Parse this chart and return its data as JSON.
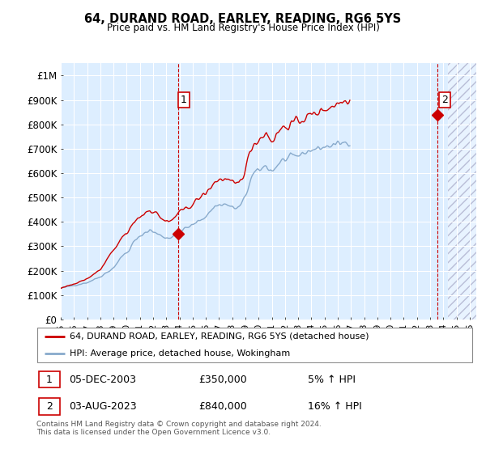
{
  "title": "64, DURAND ROAD, EARLEY, READING, RG6 5YS",
  "subtitle": "Price paid vs. HM Land Registry's House Price Index (HPI)",
  "ylabel_ticks": [
    "£0",
    "£100K",
    "£200K",
    "£300K",
    "£400K",
    "£500K",
    "£600K",
    "£700K",
    "£800K",
    "£900K",
    "£1M"
  ],
  "ytick_values": [
    0,
    100000,
    200000,
    300000,
    400000,
    500000,
    600000,
    700000,
    800000,
    900000,
    1000000
  ],
  "ylim": [
    0,
    1050000
  ],
  "xlim_start": 1995.0,
  "xlim_end": 2026.5,
  "xtick_years": [
    1995,
    1996,
    1997,
    1998,
    1999,
    2000,
    2001,
    2002,
    2003,
    2004,
    2005,
    2006,
    2007,
    2008,
    2009,
    2010,
    2011,
    2012,
    2013,
    2014,
    2015,
    2016,
    2017,
    2018,
    2019,
    2020,
    2021,
    2022,
    2023,
    2024,
    2025,
    2026
  ],
  "sale1_x": 2003.92,
  "sale1_y": 350000,
  "sale1_label": "1",
  "sale1_date": "05-DEC-2003",
  "sale1_price": "£350,000",
  "sale1_hpi": "5% ↑ HPI",
  "sale2_x": 2023.58,
  "sale2_y": 840000,
  "sale2_label": "2",
  "sale2_date": "03-AUG-2023",
  "sale2_price": "£840,000",
  "sale2_hpi": "16% ↑ HPI",
  "line_color_red": "#cc0000",
  "line_color_blue": "#88aacc",
  "bg_color": "#ddeeff",
  "legend_label_red": "64, DURAND ROAD, EARLEY, READING, RG6 5YS (detached house)",
  "legend_label_blue": "HPI: Average price, detached house, Wokingham",
  "footnote": "Contains HM Land Registry data © Crown copyright and database right 2024.\nThis data is licensed under the Open Government Licence v3.0.",
  "hpi_monthly": [
    128000,
    129000,
    130000,
    131500,
    132000,
    133000,
    134000,
    135000,
    136000,
    137000,
    138000,
    139000,
    139500,
    140000,
    141000,
    142000,
    143000,
    144000,
    145000,
    146000,
    147000,
    148000,
    149000,
    150000,
    151000,
    153000,
    155000,
    157000,
    159000,
    161000,
    163000,
    165000,
    167000,
    169000,
    171000,
    173000,
    175000,
    178000,
    181000,
    184000,
    187000,
    190000,
    193000,
    196000,
    199000,
    202000,
    205000,
    208000,
    212000,
    218000,
    224000,
    230000,
    236000,
    242000,
    248000,
    254000,
    260000,
    265000,
    268000,
    270000,
    273000,
    278000,
    283000,
    290000,
    298000,
    306000,
    315000,
    320000,
    325000,
    328000,
    332000,
    335000,
    338000,
    342000,
    346000,
    350000,
    354000,
    358000,
    360000,
    362000,
    364000,
    366000,
    364000,
    362000,
    360000,
    358000,
    355000,
    352000,
    350000,
    348000,
    346000,
    344000,
    342000,
    340000,
    338000,
    336000,
    335000,
    334000,
    333000,
    335000,
    337000,
    340000,
    343000,
    347000,
    350000,
    355000,
    358000,
    360000,
    362000,
    364000,
    366000,
    368000,
    370000,
    372000,
    374000,
    376000,
    378000,
    380000,
    382000,
    385000,
    387000,
    390000,
    393000,
    396000,
    399000,
    402000,
    405000,
    408000,
    411000,
    414000,
    417000,
    420000,
    423000,
    428000,
    433000,
    438000,
    443000,
    448000,
    453000,
    458000,
    463000,
    465000,
    467000,
    468000,
    469000,
    470000,
    471000,
    472000,
    473000,
    472000,
    471000,
    470000,
    468000,
    466000,
    464000,
    462000,
    460000,
    458000,
    456000,
    455000,
    456000,
    458000,
    460000,
    465000,
    470000,
    478000,
    487000,
    496000,
    506000,
    519000,
    533000,
    548000,
    562000,
    575000,
    585000,
    592000,
    598000,
    602000,
    605000,
    607000,
    609000,
    613000,
    617000,
    620000,
    622000,
    625000,
    628000,
    630000,
    625000,
    620000,
    615000,
    612000,
    610000,
    612000,
    615000,
    620000,
    626000,
    632000,
    638000,
    643000,
    647000,
    650000,
    652000,
    653000,
    654000,
    656000,
    658000,
    660000,
    662000,
    664000,
    665000,
    666000,
    667000,
    668000,
    669000,
    670000,
    672000,
    674000,
    676000,
    678000,
    680000,
    682000,
    684000,
    686000,
    688000,
    690000,
    692000,
    694000,
    695000,
    696000,
    697000,
    698000,
    699000,
    700000,
    701000,
    702000,
    703000,
    704000,
    705000,
    706000,
    707000,
    708000,
    709000,
    710000,
    711000,
    712000,
    713000,
    714000,
    715000,
    716000,
    717000,
    718000,
    719000,
    720000,
    721000,
    722000,
    723000,
    724000,
    725000,
    726000,
    727000,
    728000,
    729000,
    730000
  ],
  "price_monthly": [
    128000,
    130000,
    131500,
    133000,
    134000,
    135500,
    137000,
    138000,
    139500,
    141000,
    142000,
    143500,
    145000,
    146000,
    147500,
    149000,
    151000,
    153000,
    155000,
    157000,
    159000,
    161000,
    163000,
    165000,
    167000,
    170000,
    173000,
    176000,
    179000,
    182000,
    185000,
    188000,
    191000,
    194000,
    197000,
    200000,
    204000,
    210000,
    216000,
    222000,
    229000,
    237000,
    245000,
    253000,
    261000,
    268000,
    273000,
    276000,
    280000,
    285000,
    290000,
    298000,
    307000,
    316000,
    325000,
    332000,
    338000,
    342000,
    346000,
    349000,
    352000,
    357000,
    362000,
    370000,
    378000,
    386000,
    395000,
    400000,
    406000,
    410000,
    414000,
    417000,
    421000,
    424000,
    427000,
    430000,
    434000,
    439000,
    442000,
    445000,
    447000,
    449000,
    447000,
    445000,
    443000,
    441000,
    438000,
    434000,
    430000,
    426000,
    422000,
    418000,
    414000,
    410000,
    407000,
    404000,
    402000,
    400000,
    398000,
    400000,
    403000,
    407000,
    411000,
    416000,
    421000,
    427000,
    431000,
    434000,
    437000,
    440000,
    443000,
    446000,
    449000,
    452000,
    455000,
    458000,
    461000,
    464000,
    467000,
    470000,
    473000,
    477000,
    481000,
    485000,
    489000,
    493000,
    497000,
    501000,
    505000,
    508000,
    511000,
    514000,
    517000,
    522000,
    528000,
    534000,
    540000,
    546000,
    552000,
    558000,
    564000,
    566000,
    568000,
    570000,
    572000,
    573000,
    574000,
    575000,
    576000,
    575000,
    574000,
    572000,
    570000,
    567000,
    564000,
    561000,
    558000,
    556000,
    554000,
    552000,
    554000,
    557000,
    561000,
    567000,
    574000,
    583000,
    594000,
    606000,
    619000,
    634000,
    651000,
    668000,
    684000,
    697000,
    708000,
    716000,
    722000,
    727000,
    730000,
    733000,
    736000,
    741000,
    746000,
    751000,
    755000,
    758000,
    762000,
    765000,
    758000,
    751000,
    744000,
    739000,
    735000,
    738000,
    742000,
    748000,
    755000,
    762000,
    769000,
    775000,
    780000,
    784000,
    787000,
    789000,
    790000,
    792000,
    794000,
    796000,
    798000,
    800000,
    802000,
    804000,
    806000,
    808000,
    810000,
    812000,
    814000,
    816000,
    818000,
    820000,
    822000,
    824000,
    826000,
    828000,
    830000,
    832000,
    834000,
    836000,
    838000,
    840000,
    842000,
    844000,
    846000,
    848000,
    850000,
    852000,
    854000,
    856000,
    858000,
    860000,
    862000,
    864000,
    866000,
    868000,
    870000,
    872000,
    874000,
    876000,
    878000,
    880000,
    882000,
    884000,
    886000,
    888000,
    890000,
    892000,
    894000,
    896000,
    898000,
    900000,
    902000,
    904000,
    906000,
    908000
  ]
}
